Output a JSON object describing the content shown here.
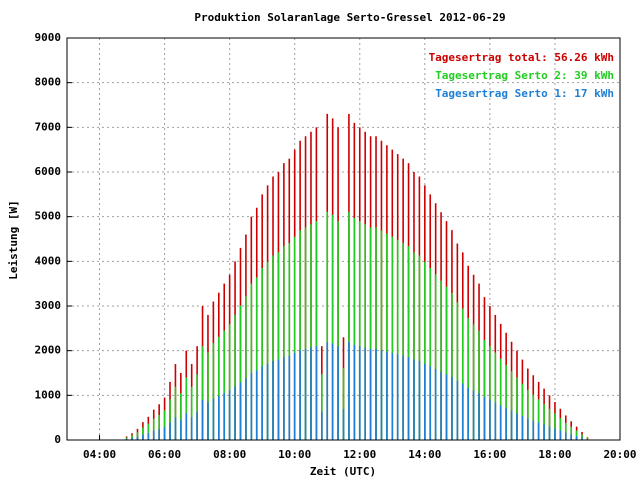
{
  "chart_data": {
    "type": "impulse",
    "title": "Produktion Solaranlage Serto-Gressel 2012-06-29",
    "x_label": "Zeit (UTC)",
    "y_label": "Leistung [W]",
    "xlim": [
      180,
      1200
    ],
    "xticks": [
      {
        "value": 240,
        "label": "04:00"
      },
      {
        "value": 360,
        "label": "06:00"
      },
      {
        "value": 480,
        "label": "08:00"
      },
      {
        "value": 600,
        "label": "10:00"
      },
      {
        "value": 720,
        "label": "12:00"
      },
      {
        "value": 840,
        "label": "14:00"
      },
      {
        "value": 960,
        "label": "16:00"
      },
      {
        "value": 1080,
        "label": "18:00"
      },
      {
        "value": 1200,
        "label": "20:00"
      }
    ],
    "ylim": [
      0,
      9000
    ],
    "yticks": [
      0,
      1000,
      2000,
      3000,
      4000,
      5000,
      6000,
      7000,
      8000,
      9000
    ],
    "grid": true,
    "legend": "top-right",
    "x": [
      290,
      300,
      310,
      320,
      330,
      340,
      350,
      360,
      370,
      380,
      390,
      400,
      410,
      420,
      430,
      440,
      450,
      460,
      470,
      480,
      490,
      500,
      510,
      520,
      530,
      540,
      550,
      560,
      570,
      580,
      590,
      600,
      610,
      620,
      630,
      640,
      650,
      660,
      670,
      680,
      690,
      700,
      710,
      720,
      730,
      740,
      750,
      760,
      770,
      780,
      790,
      800,
      810,
      820,
      830,
      840,
      850,
      860,
      870,
      880,
      890,
      900,
      910,
      920,
      930,
      940,
      950,
      960,
      970,
      980,
      990,
      1000,
      1010,
      1020,
      1030,
      1040,
      1050,
      1060,
      1070,
      1080,
      1090,
      1100,
      1110,
      1120,
      1130,
      1140
    ],
    "series": [
      {
        "name": "Tagesertrag total: 56.26 kWh",
        "color": "#cc0000",
        "values": [
          80,
          150,
          250,
          400,
          520,
          680,
          800,
          950,
          1300,
          1700,
          1500,
          2000,
          1700,
          2100,
          3000,
          2800,
          3100,
          3300,
          3500,
          3700,
          4000,
          4300,
          4600,
          5000,
          5200,
          5500,
          5700,
          5900,
          6000,
          6200,
          6300,
          6500,
          6700,
          6800,
          6900,
          7000,
          2100,
          7300,
          7200,
          7000,
          2300,
          7300,
          7100,
          7000,
          6900,
          6800,
          6800,
          6700,
          6600,
          6500,
          6400,
          6300,
          6200,
          6000,
          5900,
          5700,
          5500,
          5300,
          5100,
          4900,
          4700,
          4400,
          4200,
          3900,
          3700,
          3500,
          3200,
          3000,
          2800,
          2600,
          2400,
          2200,
          2000,
          1800,
          1600,
          1450,
          1300,
          1150,
          1000,
          850,
          700,
          550,
          420,
          300,
          180,
          60
        ]
      },
      {
        "name": "Tagesertrag Serto 2: 39 kWh",
        "color": "#22cc22",
        "values": [
          56,
          105,
          175,
          280,
          364,
          476,
          560,
          665,
          910,
          1190,
          1050,
          1400,
          1190,
          1470,
          2100,
          1960,
          2170,
          2310,
          2450,
          2590,
          2800,
          3010,
          3220,
          3500,
          3640,
          3850,
          3990,
          4130,
          4200,
          4340,
          4410,
          4550,
          4690,
          4760,
          4830,
          4900,
          1470,
          5110,
          5040,
          4900,
          1610,
          5110,
          4970,
          4900,
          4830,
          4760,
          4760,
          4690,
          4620,
          4550,
          4480,
          4410,
          4340,
          4200,
          4130,
          3990,
          3850,
          3710,
          3570,
          3430,
          3290,
          3080,
          2940,
          2730,
          2590,
          2450,
          2240,
          2100,
          1960,
          1820,
          1680,
          1540,
          1400,
          1260,
          1120,
          1015,
          910,
          805,
          700,
          595,
          490,
          385,
          294,
          210,
          126,
          42
        ]
      },
      {
        "name": "Tagesertrag Serto 1: 17 kWh",
        "color": "#1e7fd6",
        "values": [
          24,
          45,
          75,
          120,
          156,
          204,
          240,
          285,
          390,
          510,
          450,
          600,
          510,
          630,
          900,
          840,
          930,
          990,
          1050,
          1110,
          1200,
          1290,
          1380,
          1500,
          1560,
          1650,
          1710,
          1770,
          1800,
          1860,
          1890,
          1950,
          2010,
          2040,
          2070,
          2100,
          630,
          2190,
          2160,
          2100,
          690,
          2190,
          2130,
          2100,
          2070,
          2040,
          2040,
          2010,
          1980,
          1950,
          1920,
          1890,
          1860,
          1800,
          1770,
          1710,
          1650,
          1590,
          1530,
          1470,
          1410,
          1320,
          1260,
          1170,
          1110,
          1050,
          960,
          900,
          840,
          780,
          720,
          660,
          600,
          540,
          480,
          435,
          390,
          345,
          300,
          255,
          210,
          165,
          126,
          90,
          54,
          18
        ]
      }
    ]
  }
}
